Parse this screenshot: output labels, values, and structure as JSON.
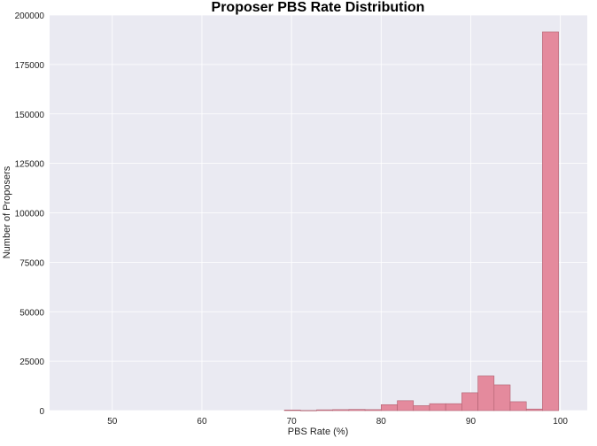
{
  "chart_data": {
    "type": "bar",
    "title": "Proposer PBS Rate Distribution",
    "xlabel": "PBS Rate (%)",
    "ylabel": "Number of Proposers",
    "xlim": [
      43,
      103
    ],
    "ylim": [
      0,
      200000
    ],
    "xticks": [
      50,
      60,
      70,
      80,
      90,
      100
    ],
    "yticks": [
      0,
      25000,
      50000,
      75000,
      100000,
      125000,
      150000,
      175000,
      200000
    ],
    "bin_edges": [
      44.0,
      45.8,
      47.6,
      49.4,
      51.2,
      53.0,
      54.8,
      56.6,
      58.4,
      60.2,
      62.0,
      63.8,
      65.6,
      67.4,
      69.2,
      71.0,
      72.8,
      74.6,
      76.4,
      78.2,
      80.0,
      81.8,
      83.6,
      85.4,
      87.2,
      89.0,
      90.8,
      92.6,
      94.4,
      96.2,
      98.0,
      99.8
    ],
    "values": [
      0,
      0,
      0,
      0,
      0,
      0,
      0,
      0,
      0,
      0,
      0,
      0,
      0,
      0,
      300,
      100,
      400,
      500,
      600,
      500,
      3000,
      5000,
      2500,
      3500,
      3500,
      9000,
      17500,
      13000,
      4500,
      800,
      191500
    ],
    "grid": true,
    "bar_color": "#e48a9d",
    "bar_edge_color": "#b06070",
    "background": "#eaeaf2"
  }
}
